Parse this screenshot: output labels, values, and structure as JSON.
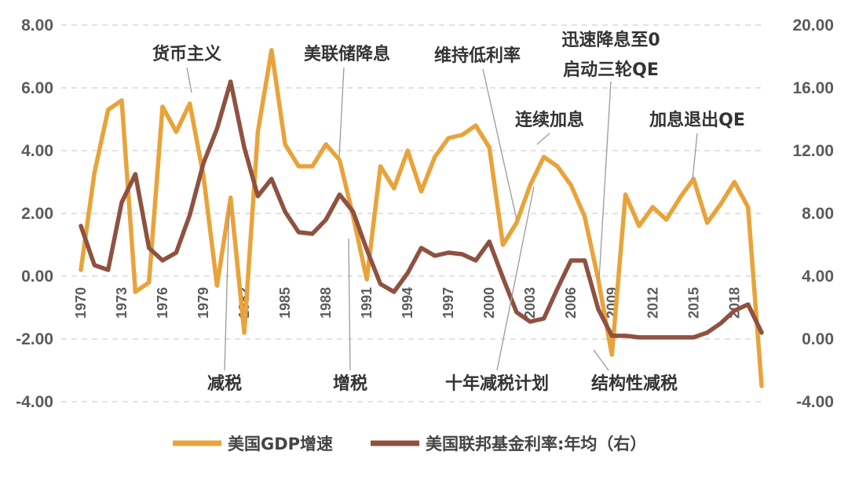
{
  "chart_data": {
    "type": "line",
    "x": [
      "1970",
      "1971",
      "1972",
      "1973",
      "1974",
      "1975",
      "1976",
      "1977",
      "1978",
      "1979",
      "1980",
      "1981",
      "1982",
      "1983",
      "1984",
      "1985",
      "1986",
      "1987",
      "1988",
      "1989",
      "1990",
      "1991",
      "1992",
      "1993",
      "1994",
      "1995",
      "1996",
      "1997",
      "1998",
      "1999",
      "2000",
      "2001",
      "2002",
      "2003",
      "2004",
      "2005",
      "2006",
      "2007",
      "2008",
      "2009",
      "2010",
      "2011",
      "2012",
      "2013",
      "2014",
      "2015",
      "2016",
      "2017",
      "2018",
      "2019",
      "2020"
    ],
    "x_tick_labels": [
      "1970",
      "1973",
      "1976",
      "1979",
      "1982",
      "1985",
      "1988",
      "1991",
      "1994",
      "1997",
      "2000",
      "2003",
      "2006",
      "2009",
      "2012",
      "2015",
      "2018"
    ],
    "y_left": {
      "ticks": [
        "8.00",
        "6.00",
        "4.00",
        "2.00",
        "0.00",
        "-2.00",
        "-4.00"
      ],
      "range": [
        -4,
        8
      ]
    },
    "y_right": {
      "ticks": [
        "20.00",
        "16.00",
        "12.00",
        "8.00",
        "4.00",
        "0.00",
        "-4.00"
      ],
      "range": [
        -4,
        20
      ]
    },
    "grid": true,
    "legend_position": "bottom",
    "series": [
      {
        "name": "美国GDP增速",
        "axis": "left",
        "color": "#e8a33a",
        "values": [
          0.2,
          3.3,
          5.3,
          5.6,
          -0.5,
          -0.2,
          5.4,
          4.6,
          5.5,
          3.2,
          -0.3,
          2.5,
          -1.8,
          4.6,
          7.2,
          4.2,
          3.5,
          3.5,
          4.2,
          3.7,
          1.9,
          -0.1,
          3.5,
          2.8,
          4.0,
          2.7,
          3.8,
          4.4,
          4.5,
          4.8,
          4.1,
          1.0,
          1.7,
          2.9,
          3.8,
          3.5,
          2.9,
          1.9,
          -0.1,
          -2.5,
          2.6,
          1.6,
          2.2,
          1.8,
          2.5,
          3.1,
          1.7,
          2.3,
          3.0,
          2.2,
          -3.5
        ]
      },
      {
        "name": "美国联邦基金利率:年均（右）",
        "axis": "right",
        "color": "#8f5140",
        "values": [
          7.2,
          4.7,
          4.4,
          8.7,
          10.5,
          5.8,
          5.0,
          5.5,
          7.9,
          11.2,
          13.4,
          16.4,
          12.2,
          9.1,
          10.2,
          8.1,
          6.8,
          6.7,
          7.6,
          9.2,
          8.1,
          5.7,
          3.5,
          3.0,
          4.2,
          5.8,
          5.3,
          5.5,
          5.4,
          5.0,
          6.2,
          3.9,
          1.7,
          1.1,
          1.3,
          3.2,
          5.0,
          5.0,
          1.9,
          0.2,
          0.2,
          0.1,
          0.1,
          0.1,
          0.1,
          0.1,
          0.4,
          1.0,
          1.8,
          2.2,
          0.4
        ]
      }
    ],
    "annotations": [
      {
        "label": "货币主义",
        "x": "1978"
      },
      {
        "label": "美联储降息",
        "x": "1990"
      },
      {
        "label": "维持低利率",
        "x": "2002"
      },
      {
        "label": "迅速降息至0",
        "x": "2008"
      },
      {
        "label": "启动三轮QE",
        "x": "2008"
      },
      {
        "label": "连续加息",
        "x": "2004"
      },
      {
        "label": "加息退出QE",
        "x": "2015"
      },
      {
        "label": "减税",
        "x": "1981"
      },
      {
        "label": "增税",
        "x": "1990"
      },
      {
        "label": "十年减税计划",
        "x": "2002"
      },
      {
        "label": "结构性减税",
        "x": "2009"
      }
    ]
  }
}
